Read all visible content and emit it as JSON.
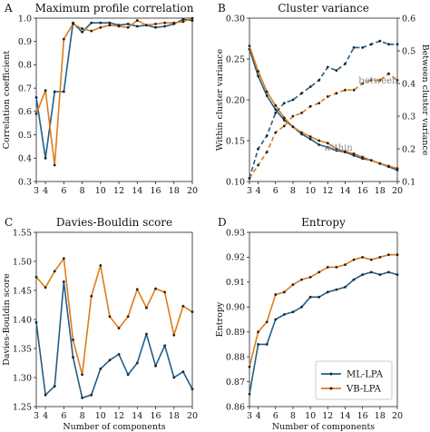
{
  "colors": {
    "ml": "#1f5f8b",
    "vb": "#e07b18",
    "annotation": "#888888"
  },
  "legend": {
    "ml": "ML-LPA",
    "vb": "VB-LPA"
  },
  "chart_data": [
    {
      "panel": "A",
      "type": "line",
      "title": "Maximum profile correlation",
      "xlabel": "",
      "ylabel": "Correlation coefficient",
      "xlim": [
        3,
        20
      ],
      "ylim": [
        0.3,
        1.0
      ],
      "x_ticks": [
        3,
        4,
        6,
        8,
        10,
        12,
        14,
        16,
        18,
        20
      ],
      "y_ticks": [
        0.3,
        0.4,
        0.5,
        0.6,
        0.7,
        0.8,
        0.9,
        1.0
      ],
      "x": [
        3,
        4,
        5,
        6,
        7,
        8,
        9,
        10,
        11,
        12,
        13,
        14,
        15,
        16,
        17,
        18,
        19,
        20
      ],
      "series": [
        {
          "name": "ML-LPA",
          "values": [
            0.66,
            0.4,
            0.685,
            0.685,
            0.98,
            0.94,
            0.98,
            0.98,
            0.98,
            0.97,
            0.975,
            0.965,
            0.97,
            0.96,
            0.965,
            0.975,
            0.995,
            0.99
          ]
        },
        {
          "name": "VB-LPA",
          "values": [
            0.59,
            0.69,
            0.37,
            0.91,
            0.975,
            0.955,
            0.945,
            0.96,
            0.97,
            0.965,
            0.96,
            0.99,
            0.97,
            0.975,
            0.98,
            0.98,
            0.985,
            1.0
          ]
        }
      ]
    },
    {
      "panel": "B",
      "type": "line",
      "title": "Cluster variance",
      "xlabel": "",
      "ylabel": "Within cluster variance",
      "ylabel_right": "Between cluster variance",
      "xlim": [
        3,
        20
      ],
      "ylim": [
        0.1,
        0.3
      ],
      "ylim_right": [
        0.1,
        0.6
      ],
      "x_ticks": [
        3,
        4,
        6,
        8,
        10,
        12,
        14,
        16,
        18,
        20
      ],
      "y_ticks": [
        0.1,
        0.15,
        0.2,
        0.25,
        0.3
      ],
      "y_ticks_right": [
        0.1,
        0.2,
        0.3,
        0.4,
        0.5,
        0.6
      ],
      "annotations": [
        {
          "text": "between",
          "x": 17.8,
          "y": 0.4
        },
        {
          "text": "within",
          "x": 13.2,
          "y": 0.138
        }
      ],
      "x": [
        3,
        4,
        5,
        6,
        7,
        8,
        9,
        10,
        11,
        12,
        13,
        14,
        15,
        16,
        17,
        18,
        19,
        20
      ],
      "series": [
        {
          "name": "ML-LPA within",
          "axis": "left",
          "values": [
            0.262,
            0.229,
            0.205,
            0.188,
            0.175,
            0.167,
            0.158,
            0.152,
            0.145,
            0.142,
            0.138,
            0.136,
            0.132,
            0.128,
            0.126,
            0.122,
            0.118,
            0.114
          ]
        },
        {
          "name": "VB-LPA within",
          "axis": "left",
          "values": [
            0.266,
            0.235,
            0.21,
            0.193,
            0.178,
            0.167,
            0.16,
            0.155,
            0.15,
            0.147,
            0.14,
            0.137,
            0.134,
            0.13,
            0.126,
            0.122,
            0.119,
            0.116
          ]
        },
        {
          "name": "ML-LPA between",
          "axis": "right",
          "dashed": true,
          "values": [
            0.11,
            0.2,
            0.24,
            0.31,
            0.34,
            0.35,
            0.37,
            0.39,
            0.41,
            0.45,
            0.44,
            0.46,
            0.51,
            0.51,
            0.52,
            0.53,
            0.52,
            0.52
          ]
        },
        {
          "name": "VB-LPA between",
          "axis": "right",
          "dashed": true,
          "values": [
            0.11,
            0.15,
            0.19,
            0.25,
            0.27,
            0.3,
            0.31,
            0.33,
            0.34,
            0.36,
            0.37,
            0.38,
            0.38,
            0.4,
            0.41,
            0.41,
            0.43,
            0.41
          ]
        }
      ]
    },
    {
      "panel": "C",
      "type": "line",
      "title": "Davies-Bouldin score",
      "xlabel": "",
      "ylabel": "Davies-Bouldin score",
      "xlim": [
        3,
        20
      ],
      "ylim": [
        1.25,
        1.55
      ],
      "x_ticks": [
        3,
        4,
        6,
        8,
        10,
        12,
        14,
        16,
        18,
        20
      ],
      "y_ticks": [
        1.25,
        1.3,
        1.35,
        1.4,
        1.45,
        1.5,
        1.55
      ],
      "x": [
        3,
        4,
        5,
        6,
        7,
        8,
        9,
        10,
        11,
        12,
        13,
        14,
        15,
        16,
        17,
        18,
        19,
        20
      ],
      "series": [
        {
          "name": "ML-LPA",
          "values": [
            1.395,
            1.27,
            1.285,
            1.465,
            1.335,
            1.265,
            1.27,
            1.315,
            1.33,
            1.34,
            1.305,
            1.325,
            1.375,
            1.32,
            1.355,
            1.3,
            1.31,
            1.28
          ]
        },
        {
          "name": "VB-LPA",
          "values": [
            1.473,
            1.455,
            1.483,
            1.505,
            1.365,
            1.305,
            1.44,
            1.493,
            1.405,
            1.385,
            1.405,
            1.452,
            1.42,
            1.453,
            1.447,
            1.373,
            1.423,
            1.413
          ]
        }
      ]
    },
    {
      "panel": "D",
      "type": "line",
      "title": "Entropy",
      "xlabel": "Number of components",
      "ylabel": "Entropy",
      "xlim": [
        3,
        20
      ],
      "ylim": [
        0.86,
        0.93
      ],
      "x_ticks": [
        3,
        4,
        6,
        8,
        10,
        12,
        14,
        16,
        18,
        20
      ],
      "y_ticks": [
        0.86,
        0.87,
        0.88,
        0.89,
        0.9,
        0.91,
        0.92,
        0.93
      ],
      "x": [
        3,
        4,
        5,
        6,
        7,
        8,
        9,
        10,
        11,
        12,
        13,
        14,
        15,
        16,
        17,
        18,
        19,
        20
      ],
      "series": [
        {
          "name": "ML-LPA",
          "values": [
            0.865,
            0.885,
            0.885,
            0.895,
            0.897,
            0.898,
            0.9,
            0.904,
            0.904,
            0.906,
            0.907,
            0.908,
            0.911,
            0.913,
            0.914,
            0.913,
            0.914,
            0.913
          ]
        },
        {
          "name": "VB-LPA",
          "values": [
            0.876,
            0.89,
            0.894,
            0.905,
            0.906,
            0.909,
            0.911,
            0.912,
            0.914,
            0.916,
            0.916,
            0.917,
            0.919,
            0.92,
            0.919,
            0.92,
            0.921,
            0.921
          ]
        }
      ]
    }
  ],
  "x_label_shared": "Number of components"
}
